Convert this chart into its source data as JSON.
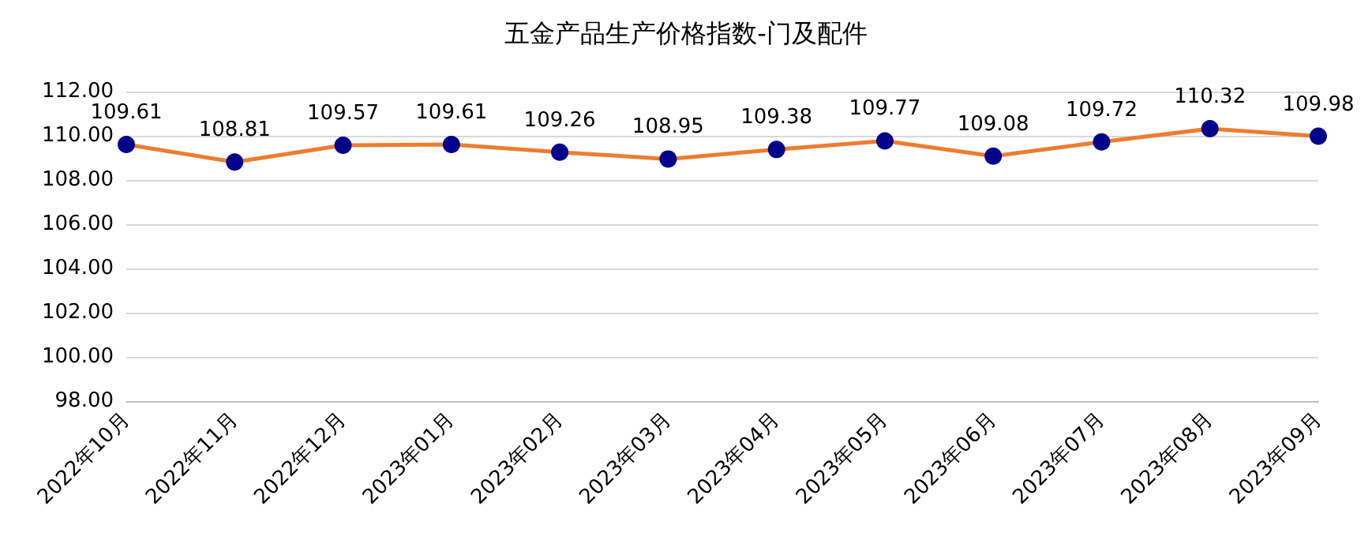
{
  "chart_data": {
    "type": "line",
    "title": "五金产品生产价格指数-门及配件",
    "categories": [
      "2022年10月",
      "2022年11月",
      "2022年12月",
      "2023年01月",
      "2023年02月",
      "2023年03月",
      "2023年04月",
      "2023年05月",
      "2023年06月",
      "2023年07月",
      "2023年08月",
      "2023年09月"
    ],
    "series": [
      {
        "color": "#ed7d31",
        "colors": [
          "#00008b",
          "#00008b",
          "#00008b",
          "#00008b",
          "#00008b",
          "#00008b",
          "#00008b",
          "#00008b",
          "#00008b",
          "#00008b",
          "#00008b",
          "#00008b"
        ],
        "values": [
          109.61,
          108.81,
          109.57,
          109.61,
          109.26,
          108.95,
          109.38,
          109.77,
          109.08,
          109.72,
          110.32,
          109.98
        ]
      }
    ],
    "ylim": [
      98,
      112
    ],
    "yticks": [
      {
        "value": 98,
        "label": "98.00"
      },
      {
        "value": 100,
        "label": "100.00"
      },
      {
        "value": 102,
        "label": "102.00"
      },
      {
        "value": 104,
        "label": "104.00"
      },
      {
        "value": 106,
        "label": "106.00"
      },
      {
        "value": 108,
        "label": "108.00"
      },
      {
        "value": 110,
        "label": "110.00"
      },
      {
        "value": 112,
        "label": "112.00"
      }
    ],
    "grid": "y",
    "marker": "circle",
    "line_style": "solid",
    "data_labels": true
  }
}
